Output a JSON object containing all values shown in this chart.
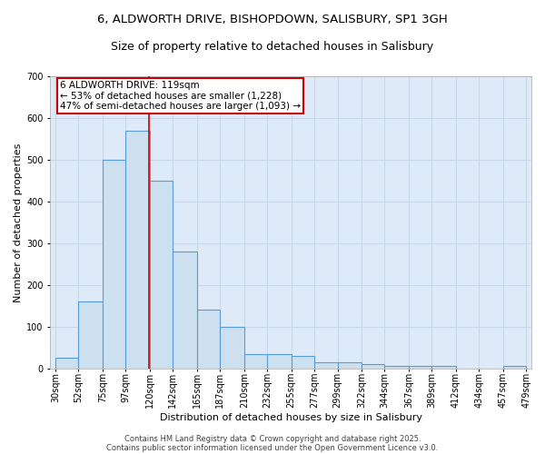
{
  "title_line1": "6, ALDWORTH DRIVE, BISHOPDOWN, SALISBURY, SP1 3GH",
  "title_line2": "Size of property relative to detached houses in Salisbury",
  "xlabel": "Distribution of detached houses by size in Salisbury",
  "ylabel": "Number of detached properties",
  "bar_left_edges": [
    30,
    52,
    75,
    97,
    120,
    142,
    165,
    187,
    210,
    232,
    255,
    277,
    299,
    322,
    344,
    367,
    389,
    412,
    434,
    457
  ],
  "bar_widths": [
    22,
    23,
    22,
    23,
    22,
    23,
    22,
    23,
    22,
    23,
    22,
    22,
    23,
    22,
    23,
    22,
    23,
    22,
    23,
    22
  ],
  "bar_heights": [
    25,
    160,
    500,
    570,
    450,
    280,
    140,
    100,
    35,
    35,
    30,
    15,
    15,
    10,
    5,
    5,
    5,
    0,
    0,
    5
  ],
  "bar_facecolor": "#cce0f0",
  "bar_edgecolor": "#5b9bd5",
  "grid_color": "#c8d8e8",
  "background_color": "#deeaf7",
  "redline_x": 119,
  "redline_color": "#cc0000",
  "annotation_text": "6 ALDWORTH DRIVE: 119sqm\n← 53% of detached houses are smaller (1,228)\n47% of semi-detached houses are larger (1,093) →",
  "annotation_box_edgecolor": "#cc0000",
  "annotation_box_facecolor": "#ffffff",
  "ylim": [
    0,
    700
  ],
  "yticks": [
    0,
    100,
    200,
    300,
    400,
    500,
    600,
    700
  ],
  "xtick_labels": [
    "30sqm",
    "52sqm",
    "75sqm",
    "97sqm",
    "120sqm",
    "142sqm",
    "165sqm",
    "187sqm",
    "210sqm",
    "232sqm",
    "255sqm",
    "277sqm",
    "299sqm",
    "322sqm",
    "344sqm",
    "367sqm",
    "389sqm",
    "412sqm",
    "434sqm",
    "457sqm",
    "479sqm"
  ],
  "xtick_positions": [
    30,
    52,
    75,
    97,
    120,
    142,
    165,
    187,
    210,
    232,
    255,
    277,
    299,
    322,
    344,
    367,
    389,
    412,
    434,
    457,
    479
  ],
  "footer_line1": "Contains HM Land Registry data © Crown copyright and database right 2025.",
  "footer_line2": "Contains public sector information licensed under the Open Government Licence v3.0.",
  "title_fontsize": 9.5,
  "title2_fontsize": 9,
  "axis_label_fontsize": 8,
  "tick_fontsize": 7,
  "footer_fontsize": 6,
  "annotation_fontsize": 7.5
}
